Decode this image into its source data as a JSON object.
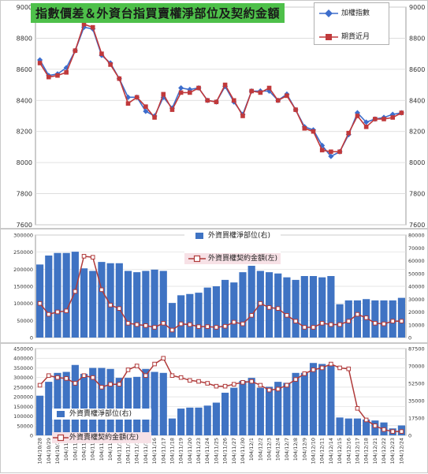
{
  "title": "指數價差＆外資台指買賣權淨部位及契約金額",
  "dates": [
    "104/10/28",
    "104/10/29",
    "104/10/30",
    "104/11/2",
    "104/11/3",
    "104/11/4",
    "104/11/5",
    "104/11/6",
    "104/11/9",
    "104/11/10",
    "104/11/11",
    "104/11/12",
    "104/11/13",
    "104/11/16",
    "104/11/17",
    "104/11/18",
    "104/11/19",
    "104/11/20",
    "104/11/23",
    "104/11/24",
    "104/11/25",
    "104/11/26",
    "104/11/27",
    "104/11/30",
    "104/12/1",
    "104/12/2",
    "104/12/3",
    "104/12/4",
    "104/12/7",
    "104/12/8",
    "104/12/9",
    "104/12/10",
    "104/12/11",
    "104/12/14",
    "104/12/15",
    "104/12/16",
    "104/12/17",
    "104/12/18",
    "104/12/21",
    "104/12/22",
    "104/12/23",
    "104/12/24"
  ],
  "colors": {
    "index": "#3d6dcc",
    "futures": "#c0393b",
    "bar": "#3f73c3",
    "amount": "#b03a3a",
    "title_bg": "#4ec04a",
    "legend_pink": "#f7e1e6"
  },
  "chart_data": [
    {
      "type": "line",
      "title": "指數價差＆外資台指買賣權淨部位及契約金額",
      "ylim": [
        7600,
        9000
      ],
      "yticks": [
        7600,
        7800,
        8000,
        8200,
        8400,
        8600,
        8800,
        9000
      ],
      "legend": "top-right",
      "series": [
        {
          "name": "加權指數",
          "values": [
            8660,
            8560,
            8570,
            8610,
            8720,
            8870,
            8860,
            8690,
            8640,
            8540,
            8420,
            8420,
            8330,
            8300,
            8420,
            8350,
            8480,
            8470,
            8480,
            8400,
            8390,
            8490,
            8390,
            8310,
            8460,
            8460,
            8460,
            8400,
            8440,
            8340,
            8230,
            8210,
            8110,
            8040,
            8070,
            8180,
            8320,
            8260,
            8280,
            8290,
            8310,
            8320
          ]
        },
        {
          "name": "期貨近月",
          "values": [
            8640,
            8550,
            8560,
            8580,
            8720,
            8890,
            8870,
            8700,
            8630,
            8540,
            8380,
            8420,
            8360,
            8290,
            8440,
            8340,
            8450,
            8450,
            8480,
            8400,
            8390,
            8500,
            8400,
            8300,
            8460,
            8450,
            8480,
            8400,
            8430,
            8340,
            8220,
            8200,
            8080,
            8070,
            8070,
            8190,
            8300,
            8230,
            8280,
            8280,
            8290,
            8320
          ]
        }
      ]
    },
    {
      "type": "bar",
      "yleft": [
        0,
        300000
      ],
      "yleft_ticks": [
        0,
        50000,
        100000,
        150000,
        200000,
        250000,
        300000
      ],
      "yright": [
        0,
        80000
      ],
      "yright_ticks": [
        0,
        10000,
        20000,
        30000,
        40000,
        50000,
        60000,
        70000,
        80000
      ],
      "legend": "top-center",
      "series": [
        {
          "name": "外資買權淨部位(右)",
          "axis": "right",
          "kind": "bar",
          "values": [
            57000,
            64000,
            66000,
            66000,
            67000,
            54000,
            52000,
            59000,
            58000,
            58000,
            52000,
            51000,
            52000,
            53000,
            52000,
            27000,
            33000,
            34000,
            35000,
            39000,
            40000,
            45000,
            43000,
            51000,
            56000,
            52000,
            51000,
            50000,
            47000,
            45000,
            48000,
            48000,
            47000,
            48000,
            26000,
            29000,
            29000,
            30000,
            29000,
            29000,
            29000,
            31000
          ]
        },
        {
          "name": "外資買權契約金額(左)",
          "axis": "left",
          "kind": "line",
          "values": [
            100000,
            68000,
            75000,
            78000,
            135000,
            238000,
            235000,
            140000,
            95000,
            85000,
            42000,
            38000,
            35000,
            30000,
            42000,
            22000,
            40000,
            38000,
            32000,
            32000,
            30000,
            33000,
            45000,
            40000,
            65000,
            100000,
            88000,
            85000,
            65000,
            48000,
            30000,
            30000,
            42000,
            38000,
            38000,
            48000,
            68000,
            58000,
            42000,
            40000,
            48000,
            48000
          ]
        }
      ]
    },
    {
      "type": "bar",
      "yleft": [
        0,
        450000
      ],
      "yleft_ticks": [
        0,
        50000,
        100000,
        150000,
        200000,
        250000,
        300000,
        350000,
        400000,
        450000
      ],
      "yright": [
        0,
        87500
      ],
      "yright_ticks": [
        0,
        17500,
        35000,
        52500,
        70000,
        87500
      ],
      "legend": "bottom-left",
      "series": [
        {
          "name": "外資賣權淨部位(右)",
          "axis": "right",
          "kind": "bar",
          "values": [
            40000,
            54000,
            63000,
            64000,
            71000,
            62000,
            68000,
            68000,
            67000,
            58000,
            58000,
            59000,
            67000,
            64000,
            63000,
            17000,
            27000,
            28000,
            28000,
            30000,
            33000,
            43000,
            48000,
            55000,
            58000,
            48000,
            49000,
            54000,
            53000,
            63000,
            63000,
            73000,
            72000,
            71000,
            18000,
            17000,
            17000,
            16000,
            15000,
            13000,
            7000,
            10000
          ]
        },
        {
          "name": "外資賣權契約金額(左)",
          "axis": "left",
          "kind": "line",
          "values": [
            260000,
            310000,
            300000,
            295000,
            270000,
            310000,
            300000,
            250000,
            265000,
            265000,
            340000,
            360000,
            310000,
            370000,
            400000,
            310000,
            300000,
            285000,
            280000,
            270000,
            255000,
            255000,
            265000,
            275000,
            280000,
            260000,
            235000,
            240000,
            260000,
            290000,
            320000,
            340000,
            350000,
            370000,
            350000,
            345000,
            140000,
            80000,
            50000,
            30000,
            20000,
            20000
          ]
        }
      ]
    }
  ]
}
